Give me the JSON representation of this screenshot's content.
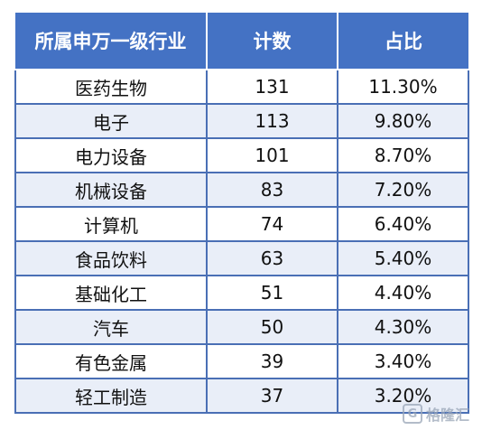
{
  "table": {
    "headers": [
      "所属申万一级行业",
      "计数",
      "占比"
    ],
    "rows": [
      [
        "医药生物",
        "131",
        "11.30%"
      ],
      [
        "电子",
        "113",
        "9.80%"
      ],
      [
        "电力设备",
        "101",
        "8.70%"
      ],
      [
        "机械设备",
        "83",
        "7.20%"
      ],
      [
        "计算机",
        "74",
        "6.40%"
      ],
      [
        "食品饮料",
        "63",
        "5.40%"
      ],
      [
        "基础化工",
        "51",
        "4.40%"
      ],
      [
        "汽车",
        "50",
        "4.30%"
      ],
      [
        "有色金属",
        "39",
        "3.40%"
      ],
      [
        "轻工制造",
        "37",
        "3.20%"
      ]
    ]
  },
  "watermark": {
    "logo_letter": "G",
    "text": "格隆汇"
  },
  "colors": {
    "header_bg": "#4472c4",
    "header_text": "#ffffff",
    "border": "#4a6fb5",
    "stripe_bg": "#e9eef8"
  }
}
